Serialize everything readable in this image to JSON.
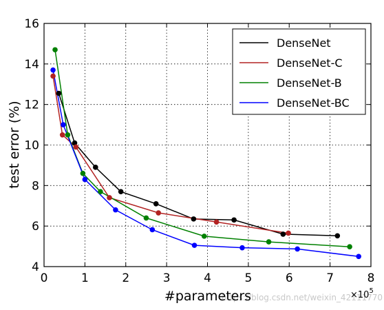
{
  "chart_data": {
    "type": "line",
    "xlabel": "#parameters",
    "ylabel": "test error (%)",
    "x_multiplier_label": "×10",
    "x_multiplier_exp": "5",
    "xlim": [
      0,
      8
    ],
    "ylim": [
      4,
      16
    ],
    "xticks": [
      "0",
      "1",
      "2",
      "3",
      "4",
      "5",
      "6",
      "7",
      "8"
    ],
    "yticks": [
      "4",
      "6",
      "8",
      "10",
      "12",
      "14",
      "16"
    ],
    "grid": true,
    "legend_position": "top-right",
    "series": [
      {
        "name": "DenseNet",
        "color": "#000000",
        "x": [
          0.36,
          0.75,
          1.26,
          1.88,
          2.74,
          3.66,
          4.65,
          5.85,
          7.18
        ],
        "y": [
          12.55,
          10.1,
          8.9,
          7.7,
          7.1,
          6.35,
          6.3,
          5.6,
          5.52
        ]
      },
      {
        "name": "DenseNet-C",
        "color": "#b22222",
        "x": [
          0.22,
          0.45,
          0.78,
          1.6,
          2.8,
          4.22,
          5.98
        ],
        "y": [
          13.4,
          10.5,
          9.9,
          7.4,
          6.65,
          6.2,
          5.65
        ]
      },
      {
        "name": "DenseNet-B",
        "color": "#008000",
        "x": [
          0.27,
          0.58,
          0.95,
          1.38,
          2.5,
          3.92,
          5.5,
          7.48
        ],
        "y": [
          14.7,
          10.5,
          8.6,
          7.7,
          6.4,
          5.5,
          5.22,
          4.98
        ]
      },
      {
        "name": "DenseNet-BC",
        "color": "#0000ff",
        "x": [
          0.22,
          0.47,
          1.0,
          1.75,
          2.65,
          3.68,
          4.85,
          6.2,
          7.7
        ],
        "y": [
          13.7,
          11.0,
          8.3,
          6.8,
          5.82,
          5.05,
          4.93,
          4.87,
          4.5
        ]
      }
    ]
  },
  "watermark": "https://blog.csdn.net/weixin_42111770"
}
